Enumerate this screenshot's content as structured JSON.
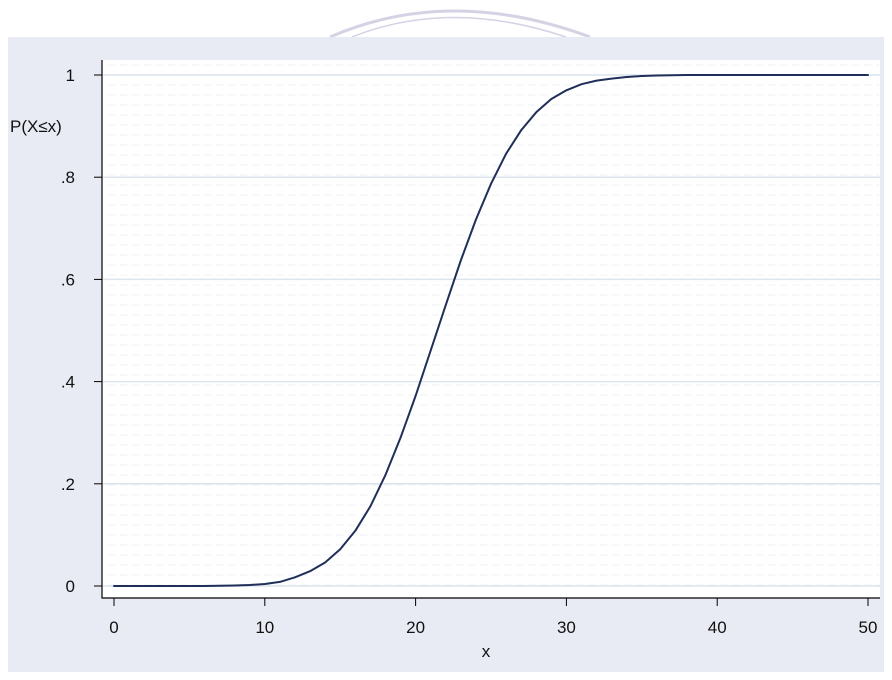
{
  "colors": {
    "outer_background": "#e8ebf3",
    "plot_background": "#ffffff",
    "major_grid": "#dce4ee",
    "minor_grid": "#eef2f7",
    "axis": "#000000",
    "series_line": "#1f2f58",
    "watermark": "#8a7fb5"
  },
  "chart_data": {
    "type": "line",
    "title": "",
    "xlabel": "x",
    "ylabel": "P(X≤x)",
    "xlim": [
      0,
      50
    ],
    "ylim": [
      0,
      1
    ],
    "x_ticks": [
      0,
      10,
      20,
      30,
      40,
      50
    ],
    "x_tick_labels": [
      "0",
      "10",
      "20",
      "30",
      "40",
      "50"
    ],
    "y_ticks": [
      0,
      0.2,
      0.4,
      0.6,
      0.8,
      1
    ],
    "y_tick_labels": [
      "0",
      ".2",
      ".4",
      ".6",
      ".8",
      "1"
    ],
    "grid": true,
    "legend": "none",
    "series": [
      {
        "x": [
          0,
          2,
          4,
          6,
          8,
          9,
          10,
          11,
          12,
          13,
          14,
          15,
          16,
          17,
          18,
          19,
          20,
          21,
          22,
          23,
          24,
          25,
          26,
          27,
          28,
          29,
          30,
          31,
          32,
          33,
          34,
          35,
          36,
          38,
          40,
          45,
          50
        ],
        "y": [
          0,
          0,
          0,
          0,
          0.001,
          0.002,
          0.004,
          0.008,
          0.017,
          0.029,
          0.046,
          0.072,
          0.108,
          0.156,
          0.217,
          0.29,
          0.372,
          0.461,
          0.55,
          0.637,
          0.717,
          0.787,
          0.846,
          0.892,
          0.927,
          0.953,
          0.97,
          0.982,
          0.989,
          0.993,
          0.996,
          0.998,
          0.999,
          1,
          1,
          1,
          1
        ]
      }
    ]
  }
}
